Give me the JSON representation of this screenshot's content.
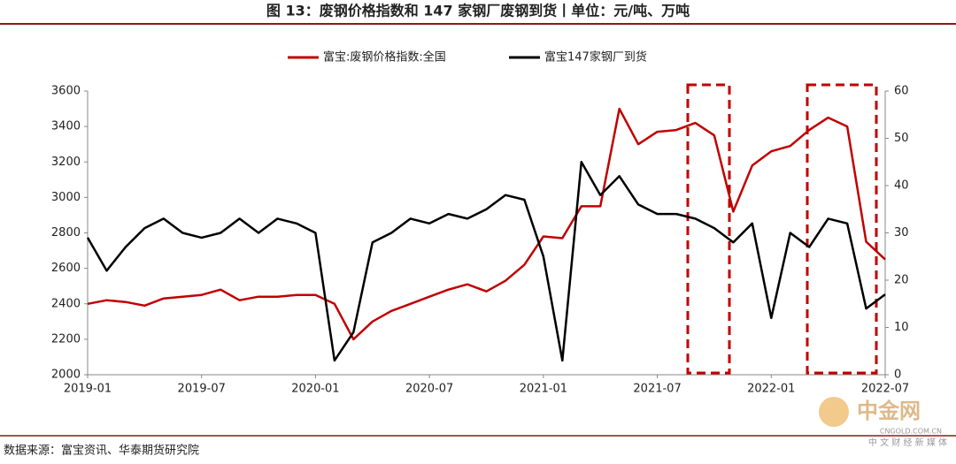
{
  "chart_data": {
    "type": "line",
    "title": "图 13：废钢价格指数和 147 家钢厂废钢到货丨单位：元/吨、万吨",
    "source": "数据来源：富宝资讯、华泰期货研究院",
    "watermark": "中金网",
    "watermark_url": "CNGOLD.COM.CN",
    "watermark_sub": "中 文 财 经 新 媒 体",
    "x": [
      "2019-01",
      "2019-02",
      "2019-03",
      "2019-04",
      "2019-05",
      "2019-06",
      "2019-07",
      "2019-08",
      "2019-09",
      "2019-10",
      "2019-11",
      "2019-12",
      "2020-01",
      "2020-02",
      "2020-03",
      "2020-04",
      "2020-05",
      "2020-06",
      "2020-07",
      "2020-08",
      "2020-09",
      "2020-10",
      "2020-11",
      "2020-12",
      "2021-01",
      "2021-02",
      "2021-03",
      "2021-04",
      "2021-05",
      "2021-06",
      "2021-07",
      "2021-08",
      "2021-09",
      "2021-10",
      "2021-11",
      "2021-12",
      "2022-01",
      "2022-02",
      "2022-03",
      "2022-04",
      "2022-05",
      "2022-06",
      "2022-07"
    ],
    "xticks": [
      "2019-01",
      "2019-07",
      "2020-01",
      "2020-07",
      "2021-01",
      "2021-07",
      "2022-01",
      "2022-07"
    ],
    "ylim": [
      2000,
      3600
    ],
    "yticks": [
      2000,
      2200,
      2400,
      2600,
      2800,
      3000,
      3200,
      3400,
      3600
    ],
    "y2lim": [
      0,
      60
    ],
    "y2ticks": [
      0,
      10,
      20,
      30,
      40,
      50,
      60
    ],
    "series": [
      {
        "name": "富宝:废钢价格指数:全国",
        "color": "#c00000",
        "values": [
          2400,
          2420,
          2410,
          2390,
          2430,
          2440,
          2450,
          2480,
          2420,
          2440,
          2440,
          2450,
          2450,
          2400,
          2200,
          2300,
          2360,
          2400,
          2440,
          2480,
          2510,
          2470,
          2530,
          2620,
          2780,
          2770,
          2950,
          2950,
          3500,
          3300,
          3370,
          3380,
          3420,
          3350,
          2920,
          3180,
          3260,
          3290,
          3380,
          3450,
          3400,
          2750,
          2650
        ]
      },
      {
        "name": "富宝147家钢厂到货",
        "color": "#000000",
        "axis": "y2",
        "values": [
          29,
          22,
          27,
          31,
          33,
          30,
          29,
          30,
          33,
          30,
          33,
          32,
          30,
          3,
          9,
          28,
          30,
          33,
          32,
          34,
          33,
          35,
          38,
          37,
          25,
          3,
          45,
          38,
          42,
          36,
          34,
          34,
          33,
          31,
          28,
          32,
          12,
          30,
          27,
          33,
          32,
          14,
          17
        ]
      }
    ]
  }
}
